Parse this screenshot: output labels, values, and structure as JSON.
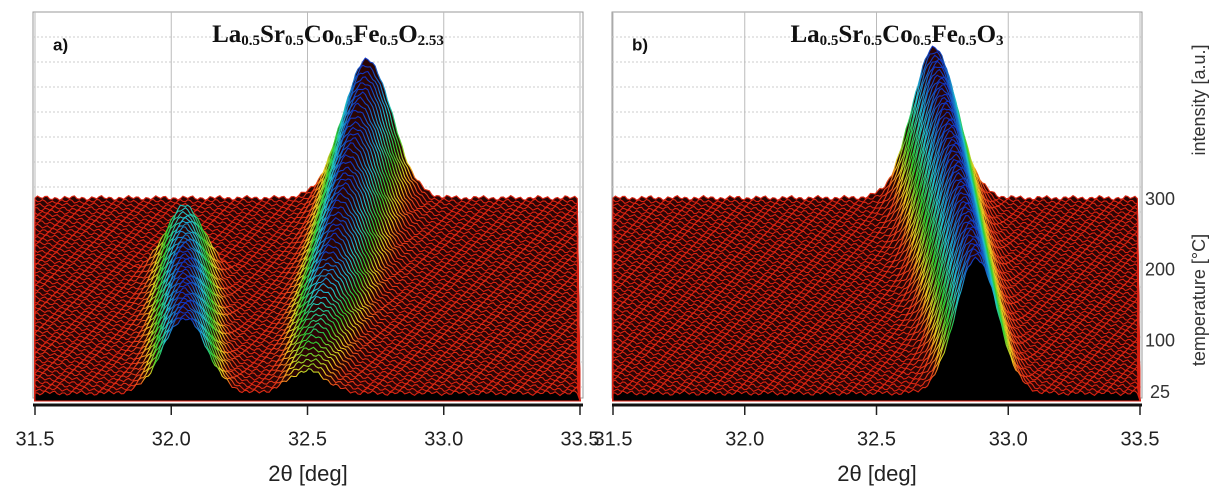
{
  "chart_data": [
    {
      "type": "waterfall",
      "label": "a)",
      "title_parts": [
        "La",
        "0.5",
        "Sr",
        "0.5",
        "Co",
        "0.5",
        "Fe",
        "0.5",
        "O",
        "2.53"
      ],
      "xlabel": "2θ [deg]",
      "xlim": [
        31.5,
        33.5
      ],
      "xticks": [
        31.5,
        {
          "value": 32,
          "label": "32.0"
        },
        32.5,
        {
          "value": 33,
          "label": "33.0"
        },
        33.5
      ],
      "ylim": [
        0,
        100
      ],
      "y2lim": [
        25,
        300
      ],
      "temperature_step": 5,
      "grid": true,
      "peaks": [
        {
          "x": [
            32.05,
            32.05
          ],
          "height": [
            50,
            42
          ],
          "width": [
            0.08,
            0.07
          ],
          "temperature": [
            25,
            200
          ]
        },
        {
          "x": [
            32.5,
            32.72
          ],
          "height": [
            15,
            92
          ],
          "width": [
            0.07,
            0.09
          ],
          "temperature": [
            25,
            300
          ]
        }
      ]
    },
    {
      "type": "waterfall",
      "label": "b)",
      "title_parts": [
        "La",
        "0.5",
        "Sr",
        "0.5",
        "Co",
        "0.5",
        "Fe",
        "0.5",
        "O",
        "3"
      ],
      "xlabel": "2θ [deg]",
      "xlim": [
        31.5,
        33.5
      ],
      "xticks": [
        31.5,
        {
          "value": 32,
          "label": "32.0"
        },
        32.5,
        {
          "value": 33,
          "label": "33.0"
        },
        33.5
      ],
      "ylim": [
        0,
        100
      ],
      "y2lim": [
        25,
        300
      ],
      "temperature_step": 5,
      "grid": true,
      "ylabel": "intensity [a.u.]",
      "y2label": "temperature [°C]",
      "y2ticks": [
        25,
        100,
        200,
        300
      ],
      "peaks": [
        {
          "x": [
            32.88,
            32.72
          ],
          "height": [
            90,
            100
          ],
          "width": [
            0.08,
            0.085
          ],
          "temperature": [
            25,
            300
          ]
        }
      ]
    }
  ]
}
